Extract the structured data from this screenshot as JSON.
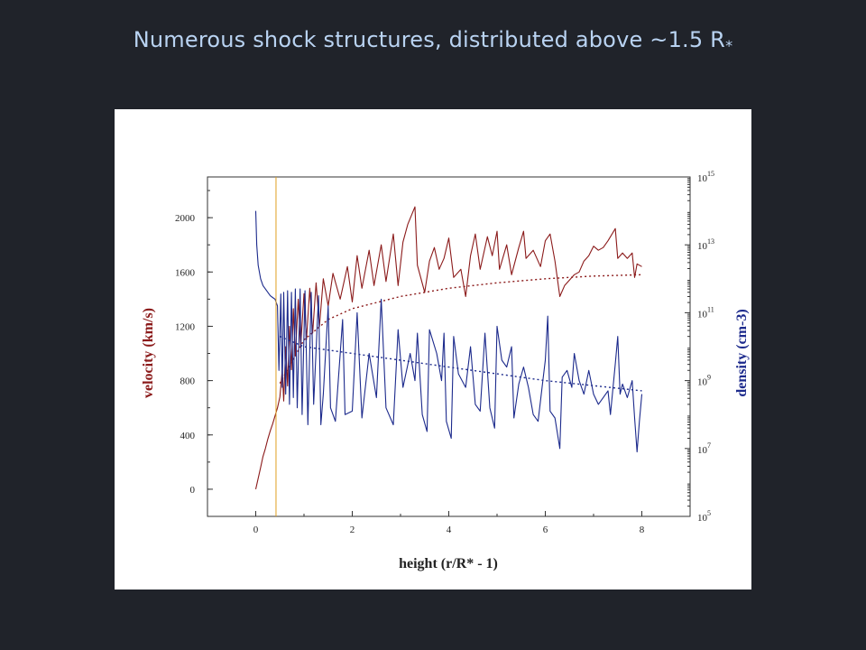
{
  "slide": {
    "title": "Numerous shock structures, distributed above ~1.5 R",
    "title_subscript": "*"
  },
  "chart_data": {
    "type": "line",
    "xlabel": "height (r/R* - 1)",
    "xlim": [
      -1,
      9
    ],
    "x_ticks": [
      "0",
      "2",
      "4",
      "6",
      "8"
    ],
    "y_left": {
      "label": "velocity (km/s)",
      "color": "#8b1a1a",
      "lim": [
        -200,
        2300
      ],
      "ticks": [
        "0",
        "400",
        "800",
        "1200",
        "1600",
        "2000"
      ]
    },
    "y_right": {
      "label": "density (cm-3)",
      "color": "#1c2a8c",
      "scale": "log",
      "lim_exponent": [
        5,
        15
      ],
      "ticks": [
        "10",
        "10",
        "10",
        "10",
        "10",
        "10"
      ],
      "tick_exponents": [
        "5",
        "7",
        "9",
        "11",
        "13",
        "15"
      ]
    },
    "marker_line_x": 0.42,
    "marker_color": "#e0a020",
    "series": [
      {
        "axis": "left",
        "style": "solid",
        "color": "#8b1a1a",
        "points": [
          [
            0,
            0
          ],
          [
            0.05,
            80
          ],
          [
            0.1,
            160
          ],
          [
            0.15,
            240
          ],
          [
            0.2,
            300
          ],
          [
            0.25,
            370
          ],
          [
            0.3,
            430
          ],
          [
            0.35,
            480
          ],
          [
            0.4,
            540
          ],
          [
            0.45,
            600
          ],
          [
            0.5,
            680
          ],
          [
            0.55,
            880
          ],
          [
            0.58,
            650
          ],
          [
            0.62,
            1050
          ],
          [
            0.66,
            760
          ],
          [
            0.7,
            1200
          ],
          [
            0.74,
            880
          ],
          [
            0.78,
            1330
          ],
          [
            0.82,
            980
          ],
          [
            0.88,
            1400
          ],
          [
            0.93,
            1050
          ],
          [
            1.0,
            1440
          ],
          [
            1.05,
            1100
          ],
          [
            1.12,
            1480
          ],
          [
            1.18,
            1150
          ],
          [
            1.25,
            1520
          ],
          [
            1.32,
            1200
          ],
          [
            1.4,
            1550
          ],
          [
            1.5,
            1350
          ],
          [
            1.6,
            1590
          ],
          [
            1.75,
            1400
          ],
          [
            1.9,
            1640
          ],
          [
            2.0,
            1380
          ],
          [
            2.1,
            1720
          ],
          [
            2.2,
            1480
          ],
          [
            2.35,
            1760
          ],
          [
            2.45,
            1500
          ],
          [
            2.6,
            1800
          ],
          [
            2.7,
            1530
          ],
          [
            2.85,
            1880
          ],
          [
            2.95,
            1500
          ],
          [
            3.05,
            1820
          ],
          [
            3.15,
            1950
          ],
          [
            3.3,
            2080
          ],
          [
            3.35,
            1650
          ],
          [
            3.5,
            1450
          ],
          [
            3.6,
            1680
          ],
          [
            3.7,
            1780
          ],
          [
            3.8,
            1620
          ],
          [
            3.9,
            1700
          ],
          [
            4.0,
            1850
          ],
          [
            4.1,
            1560
          ],
          [
            4.25,
            1620
          ],
          [
            4.35,
            1420
          ],
          [
            4.45,
            1720
          ],
          [
            4.55,
            1880
          ],
          [
            4.65,
            1620
          ],
          [
            4.8,
            1860
          ],
          [
            4.9,
            1720
          ],
          [
            5.0,
            1900
          ],
          [
            5.05,
            1620
          ],
          [
            5.2,
            1800
          ],
          [
            5.3,
            1580
          ],
          [
            5.45,
            1780
          ],
          [
            5.55,
            1900
          ],
          [
            5.6,
            1700
          ],
          [
            5.75,
            1760
          ],
          [
            5.9,
            1640
          ],
          [
            6.0,
            1830
          ],
          [
            6.1,
            1880
          ],
          [
            6.2,
            1680
          ],
          [
            6.3,
            1420
          ],
          [
            6.4,
            1500
          ],
          [
            6.5,
            1540
          ],
          [
            6.6,
            1580
          ],
          [
            6.7,
            1600
          ],
          [
            6.8,
            1680
          ],
          [
            6.9,
            1720
          ],
          [
            7.0,
            1790
          ],
          [
            7.1,
            1760
          ],
          [
            7.2,
            1780
          ],
          [
            7.3,
            1830
          ],
          [
            7.45,
            1920
          ],
          [
            7.5,
            1700
          ],
          [
            7.6,
            1740
          ],
          [
            7.7,
            1700
          ],
          [
            7.8,
            1740
          ],
          [
            7.85,
            1560
          ],
          [
            7.9,
            1660
          ],
          [
            8.0,
            1640
          ]
        ]
      },
      {
        "axis": "left",
        "style": "dotted",
        "color": "#8b1a1a",
        "points": [
          [
            0.5,
            780
          ],
          [
            1.0,
            1100
          ],
          [
            1.5,
            1250
          ],
          [
            2.0,
            1330
          ],
          [
            3.0,
            1420
          ],
          [
            4.0,
            1480
          ],
          [
            5.0,
            1520
          ],
          [
            6.0,
            1550
          ],
          [
            7.0,
            1570
          ],
          [
            8.0,
            1580
          ]
        ]
      },
      {
        "axis": "right",
        "style": "solid",
        "color": "#1c2a8c",
        "points": [
          [
            0,
            14.0
          ],
          [
            0.02,
            13.0
          ],
          [
            0.05,
            12.4
          ],
          [
            0.1,
            12.0
          ],
          [
            0.15,
            11.8
          ],
          [
            0.2,
            11.7
          ],
          [
            0.25,
            11.6
          ],
          [
            0.3,
            11.5
          ],
          [
            0.35,
            11.45
          ],
          [
            0.4,
            11.4
          ],
          [
            0.45,
            11.2
          ],
          [
            0.48,
            9.3
          ],
          [
            0.52,
            11.55
          ],
          [
            0.55,
            8.8
          ],
          [
            0.58,
            11.6
          ],
          [
            0.62,
            8.6
          ],
          [
            0.66,
            11.65
          ],
          [
            0.7,
            8.3
          ],
          [
            0.74,
            11.6
          ],
          [
            0.78,
            8.5
          ],
          [
            0.82,
            11.7
          ],
          [
            0.86,
            8.2
          ],
          [
            0.92,
            11.7
          ],
          [
            0.96,
            8.0
          ],
          [
            1.02,
            11.65
          ],
          [
            1.08,
            7.7
          ],
          [
            1.15,
            11.6
          ],
          [
            1.2,
            8.3
          ],
          [
            1.3,
            11.5
          ],
          [
            1.35,
            7.7
          ],
          [
            1.4,
            8.6
          ],
          [
            1.5,
            11.2
          ],
          [
            1.55,
            8.2
          ],
          [
            1.65,
            7.8
          ],
          [
            1.8,
            10.8
          ],
          [
            1.85,
            8.0
          ],
          [
            2.0,
            8.1
          ],
          [
            2.1,
            11.0
          ],
          [
            2.2,
            7.9
          ],
          [
            2.35,
            9.8
          ],
          [
            2.5,
            8.5
          ],
          [
            2.6,
            11.4
          ],
          [
            2.7,
            8.2
          ],
          [
            2.85,
            7.7
          ],
          [
            2.95,
            10.5
          ],
          [
            3.05,
            8.8
          ],
          [
            3.2,
            9.8
          ],
          [
            3.3,
            9.0
          ],
          [
            3.35,
            10.4
          ],
          [
            3.45,
            8.0
          ],
          [
            3.55,
            7.5
          ],
          [
            3.6,
            10.5
          ],
          [
            3.75,
            9.8
          ],
          [
            3.85,
            9.0
          ],
          [
            3.9,
            10.4
          ],
          [
            3.95,
            7.8
          ],
          [
            4.05,
            7.3
          ],
          [
            4.1,
            10.3
          ],
          [
            4.2,
            9.2
          ],
          [
            4.35,
            8.8
          ],
          [
            4.45,
            10.0
          ],
          [
            4.55,
            8.3
          ],
          [
            4.65,
            8.1
          ],
          [
            4.75,
            10.4
          ],
          [
            4.85,
            8.2
          ],
          [
            4.95,
            7.6
          ],
          [
            5.0,
            10.6
          ],
          [
            5.1,
            9.6
          ],
          [
            5.2,
            9.4
          ],
          [
            5.3,
            10.0
          ],
          [
            5.35,
            7.9
          ],
          [
            5.45,
            8.9
          ],
          [
            5.55,
            9.4
          ],
          [
            5.65,
            8.8
          ],
          [
            5.75,
            8.0
          ],
          [
            5.85,
            7.8
          ],
          [
            5.95,
            9.0
          ],
          [
            6.0,
            9.6
          ],
          [
            6.05,
            10.9
          ],
          [
            6.1,
            8.1
          ],
          [
            6.2,
            7.9
          ],
          [
            6.3,
            7.0
          ],
          [
            6.35,
            9.1
          ],
          [
            6.45,
            9.3
          ],
          [
            6.55,
            8.8
          ],
          [
            6.6,
            9.8
          ],
          [
            6.7,
            9.0
          ],
          [
            6.8,
            8.6
          ],
          [
            6.9,
            9.3
          ],
          [
            7.0,
            8.6
          ],
          [
            7.1,
            8.3
          ],
          [
            7.2,
            8.5
          ],
          [
            7.3,
            8.7
          ],
          [
            7.35,
            8.0
          ],
          [
            7.45,
            9.5
          ],
          [
            7.5,
            10.3
          ],
          [
            7.55,
            8.6
          ],
          [
            7.6,
            8.9
          ],
          [
            7.7,
            8.5
          ],
          [
            7.8,
            9.0
          ],
          [
            7.85,
            7.9
          ],
          [
            7.9,
            6.9
          ],
          [
            7.95,
            7.8
          ],
          [
            8.0,
            8.6
          ]
        ]
      },
      {
        "axis": "right",
        "style": "dotted",
        "color": "#1c2a8c",
        "points": [
          [
            0.5,
            10.3
          ],
          [
            1.0,
            10.0
          ],
          [
            2.0,
            9.8
          ],
          [
            3.0,
            9.6
          ],
          [
            4.0,
            9.4
          ],
          [
            5.0,
            9.2
          ],
          [
            6.0,
            9.0
          ],
          [
            7.0,
            8.85
          ],
          [
            8.0,
            8.7
          ]
        ]
      }
    ]
  }
}
